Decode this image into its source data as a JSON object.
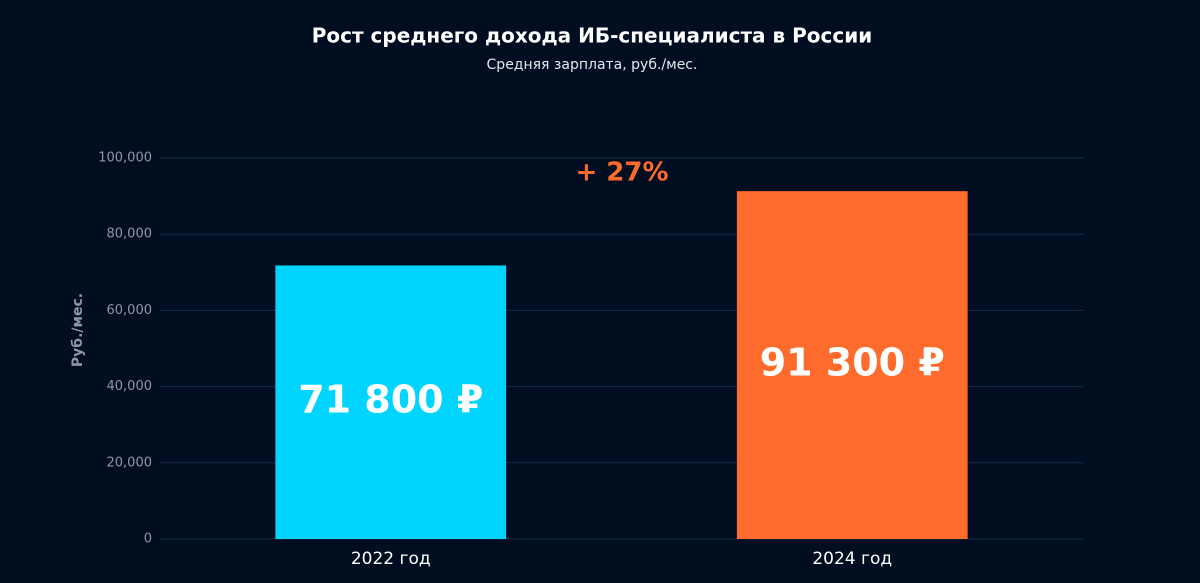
{
  "chart_data": {
    "type": "bar",
    "title": "Рост среднего дохода ИБ-специалиста в России",
    "subtitle": "Средняя зарплата, руб./мес.",
    "y_label": "Руб./мес.",
    "annotation": "+ 27%",
    "categories": [
      "2022 год",
      "2024 год"
    ],
    "values": [
      71800,
      91300
    ],
    "value_labels": [
      "71 800 ₽",
      "91 300 ₽"
    ],
    "colors": [
      "#00d4ff",
      "#ff6b2c"
    ],
    "ylim": [
      0,
      100000
    ],
    "yticks": [
      0,
      {
        "value": 20000,
        "label": "20,000"
      },
      {
        "value": 40000,
        "label": "40,000"
      },
      {
        "value": 60000,
        "label": "60,000"
      },
      {
        "value": 80000,
        "label": "80,000"
      },
      {
        "value": 100000,
        "label": "100,000"
      }
    ],
    "grid": true
  }
}
